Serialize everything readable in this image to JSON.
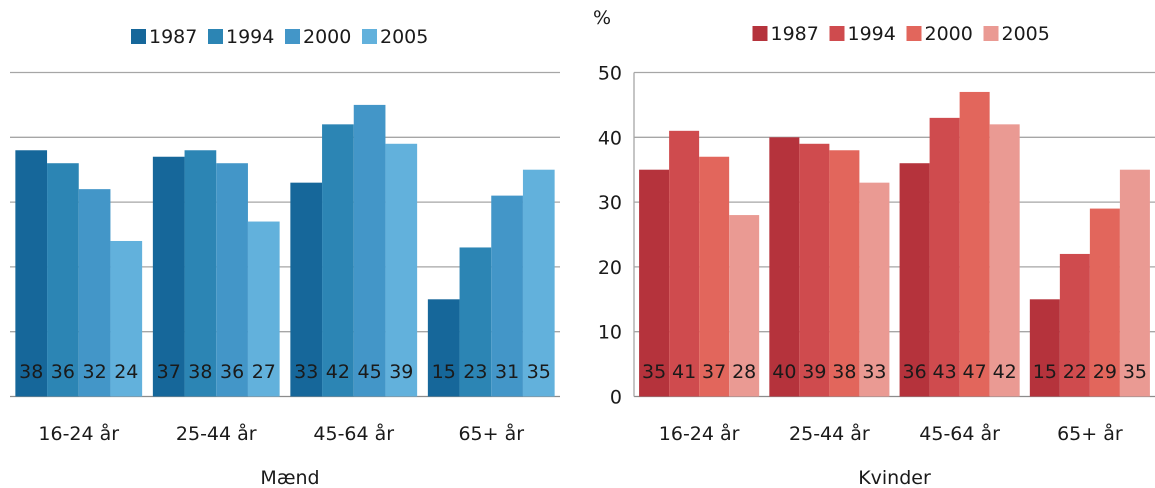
{
  "chart_data": [
    {
      "type": "bar",
      "title": "",
      "xlabel": "Mænd",
      "ylabel": "",
      "ylim": [
        0,
        50
      ],
      "yticks": [],
      "grid": true,
      "legend_position": "top",
      "categories": [
        "16-24 år",
        "25-44 år",
        "45-64 år",
        "65+ år"
      ],
      "series": [
        {
          "name": "1987",
          "values": [
            38,
            37,
            33,
            15
          ],
          "color": "#16679a"
        },
        {
          "name": "1994",
          "values": [
            36,
            38,
            42,
            23
          ],
          "color": "#2c85b4"
        },
        {
          "name": "2000",
          "values": [
            32,
            36,
            45,
            31
          ],
          "color": "#4396c8"
        },
        {
          "name": "2005",
          "values": [
            24,
            27,
            39,
            35
          ],
          "color": "#62b1dc"
        }
      ]
    },
    {
      "type": "bar",
      "title": "",
      "xlabel": "Kvinder",
      "ylabel": "%",
      "ylim": [
        0,
        50
      ],
      "yticks": [
        "0",
        "10",
        "20",
        "30",
        "40",
        "50"
      ],
      "grid": true,
      "legend_position": "top",
      "categories": [
        "16-24 år",
        "25-44 år",
        "45-64 år",
        "65+ år"
      ],
      "series": [
        {
          "name": "1987",
          "values": [
            35,
            40,
            36,
            15
          ],
          "color": "#b5333c"
        },
        {
          "name": "1994",
          "values": [
            41,
            39,
            43,
            22
          ],
          "color": "#cf4b4e"
        },
        {
          "name": "2000",
          "values": [
            37,
            38,
            47,
            29
          ],
          "color": "#e2665c"
        },
        {
          "name": "2005",
          "values": [
            28,
            33,
            42,
            35
          ],
          "color": "#ea9a93"
        }
      ]
    }
  ]
}
